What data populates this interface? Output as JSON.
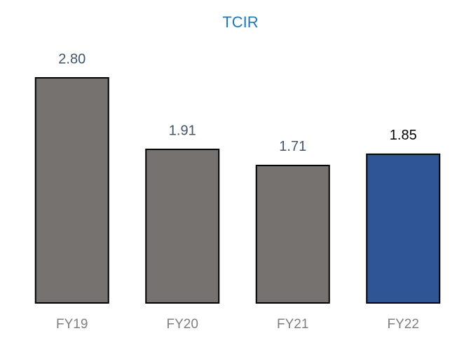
{
  "chart_data": {
    "type": "bar",
    "title": "TCIR",
    "categories": [
      "FY19",
      "FY20",
      "FY21",
      "FY22"
    ],
    "values": [
      2.8,
      1.91,
      1.71,
      1.85
    ],
    "value_labels": [
      "2.80",
      "1.91",
      "1.71",
      "1.85"
    ],
    "colors": [
      "#757270",
      "#757270",
      "#757270",
      "#2f5597"
    ],
    "value_label_colors": [
      "#44546a",
      "#44546a",
      "#44546a",
      "#000000"
    ]
  }
}
